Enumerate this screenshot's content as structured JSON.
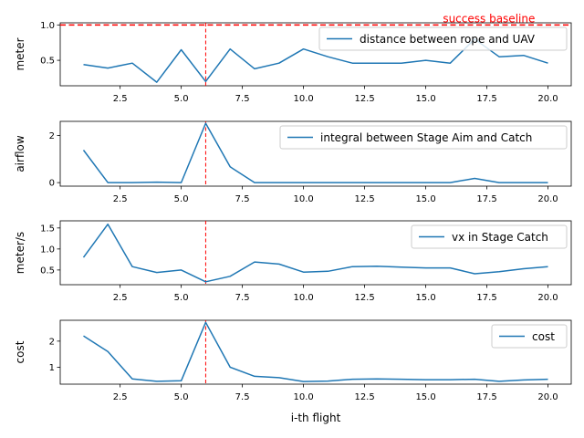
{
  "figure": {
    "xlabel": "i-th flight"
  },
  "chart_data": [
    {
      "type": "line",
      "ylabel": "meter",
      "xlim": [
        0.05,
        20.95
      ],
      "ylim": [
        0.14,
        1.03
      ],
      "xticks": [
        2.5,
        5.0,
        7.5,
        10.0,
        12.5,
        15.0,
        17.5,
        20.0
      ],
      "xtick_labels": [
        "2.5",
        "5.0",
        "7.5",
        "10.0",
        "12.5",
        "15.0",
        "17.5",
        "20.0"
      ],
      "yticks": [
        0.5,
        1.0
      ],
      "ytick_labels": [
        "0.5",
        "1.0"
      ],
      "x": [
        1,
        2,
        3,
        4,
        5,
        6,
        7,
        8,
        9,
        10,
        11,
        12,
        13,
        14,
        15,
        16,
        17,
        18,
        19,
        20
      ],
      "series": [
        {
          "name": "distance between rope and UAV",
          "color": "#1f77b4",
          "values": [
            0.44,
            0.39,
            0.46,
            0.19,
            0.65,
            0.2,
            0.66,
            0.38,
            0.46,
            0.66,
            0.55,
            0.46,
            0.46,
            0.46,
            0.5,
            0.46,
            0.8,
            0.55,
            0.57,
            0.46
          ]
        }
      ],
      "hline": {
        "y": 1.0,
        "color": "#ff0000",
        "style": "dashed",
        "label": "success baseline"
      },
      "vline": {
        "x": 6,
        "color": "#ff0000",
        "style": "dashed"
      },
      "legend": "upper-right",
      "grid": false
    },
    {
      "type": "line",
      "ylabel": "airflow",
      "xlim": [
        0.05,
        20.95
      ],
      "ylim": [
        -0.15,
        2.6
      ],
      "xticks": [
        2.5,
        5.0,
        7.5,
        10.0,
        12.5,
        15.0,
        17.5,
        20.0
      ],
      "xtick_labels": [
        "2.5",
        "5.0",
        "7.5",
        "10.0",
        "12.5",
        "15.0",
        "17.5",
        "20.0"
      ],
      "yticks": [
        0,
        2
      ],
      "ytick_labels": [
        "0",
        "2"
      ],
      "x": [
        1,
        2,
        3,
        4,
        5,
        6,
        7,
        8,
        9,
        10,
        11,
        12,
        13,
        14,
        15,
        16,
        17,
        18,
        19,
        20
      ],
      "series": [
        {
          "name": "integral between Stage Aim and Catch",
          "color": "#1f77b4",
          "values": [
            1.38,
            0.0,
            0.0,
            0.02,
            0.0,
            2.52,
            0.67,
            0.0,
            0.0,
            0.0,
            0.0,
            0.0,
            0.0,
            0.0,
            0.0,
            0.0,
            0.18,
            0.0,
            0.0,
            0.0
          ]
        }
      ],
      "vline": {
        "x": 6,
        "color": "#ff0000",
        "style": "dashed"
      },
      "legend": "upper-right",
      "grid": false
    },
    {
      "type": "line",
      "ylabel": "meter/s",
      "xlim": [
        0.05,
        20.95
      ],
      "ylim": [
        0.15,
        1.67
      ],
      "xticks": [
        2.5,
        5.0,
        7.5,
        10.0,
        12.5,
        15.0,
        17.5,
        20.0
      ],
      "xtick_labels": [
        "2.5",
        "5.0",
        "7.5",
        "10.0",
        "12.5",
        "15.0",
        "17.5",
        "20.0"
      ],
      "yticks": [
        0.5,
        1.0,
        1.5
      ],
      "ytick_labels": [
        "0.5",
        "1.0",
        "1.5"
      ],
      "x": [
        1,
        2,
        3,
        4,
        5,
        6,
        7,
        8,
        9,
        10,
        11,
        12,
        13,
        14,
        15,
        16,
        17,
        18,
        19,
        20
      ],
      "series": [
        {
          "name": "vx in Stage Catch",
          "color": "#1f77b4",
          "values": [
            0.8,
            1.59,
            0.58,
            0.44,
            0.5,
            0.22,
            0.35,
            0.69,
            0.64,
            0.45,
            0.47,
            0.58,
            0.59,
            0.57,
            0.55,
            0.55,
            0.41,
            0.46,
            0.53,
            0.58
          ]
        }
      ],
      "vline": {
        "x": 6,
        "color": "#ff0000",
        "style": "dashed"
      },
      "legend": "upper-right",
      "grid": false
    },
    {
      "type": "line",
      "ylabel": "cost",
      "xlim": [
        0.05,
        20.95
      ],
      "ylim": [
        0.35,
        2.8
      ],
      "xticks": [
        2.5,
        5.0,
        7.5,
        10.0,
        12.5,
        15.0,
        17.5,
        20.0
      ],
      "xtick_labels": [
        "2.5",
        "5.0",
        "7.5",
        "10.0",
        "12.5",
        "15.0",
        "17.5",
        "20.0"
      ],
      "yticks": [
        1,
        2
      ],
      "ytick_labels": [
        "1",
        "2"
      ],
      "x": [
        1,
        2,
        3,
        4,
        5,
        6,
        7,
        8,
        9,
        10,
        11,
        12,
        13,
        14,
        15,
        16,
        17,
        18,
        19,
        20
      ],
      "series": [
        {
          "name": "cost",
          "color": "#1f77b4",
          "values": [
            2.2,
            1.6,
            0.55,
            0.46,
            0.48,
            2.72,
            1.0,
            0.65,
            0.6,
            0.45,
            0.47,
            0.54,
            0.55,
            0.54,
            0.52,
            0.52,
            0.54,
            0.46,
            0.51,
            0.54
          ]
        }
      ],
      "vline": {
        "x": 6,
        "color": "#ff0000",
        "style": "dashed"
      },
      "legend": "upper-right",
      "grid": false
    }
  ]
}
